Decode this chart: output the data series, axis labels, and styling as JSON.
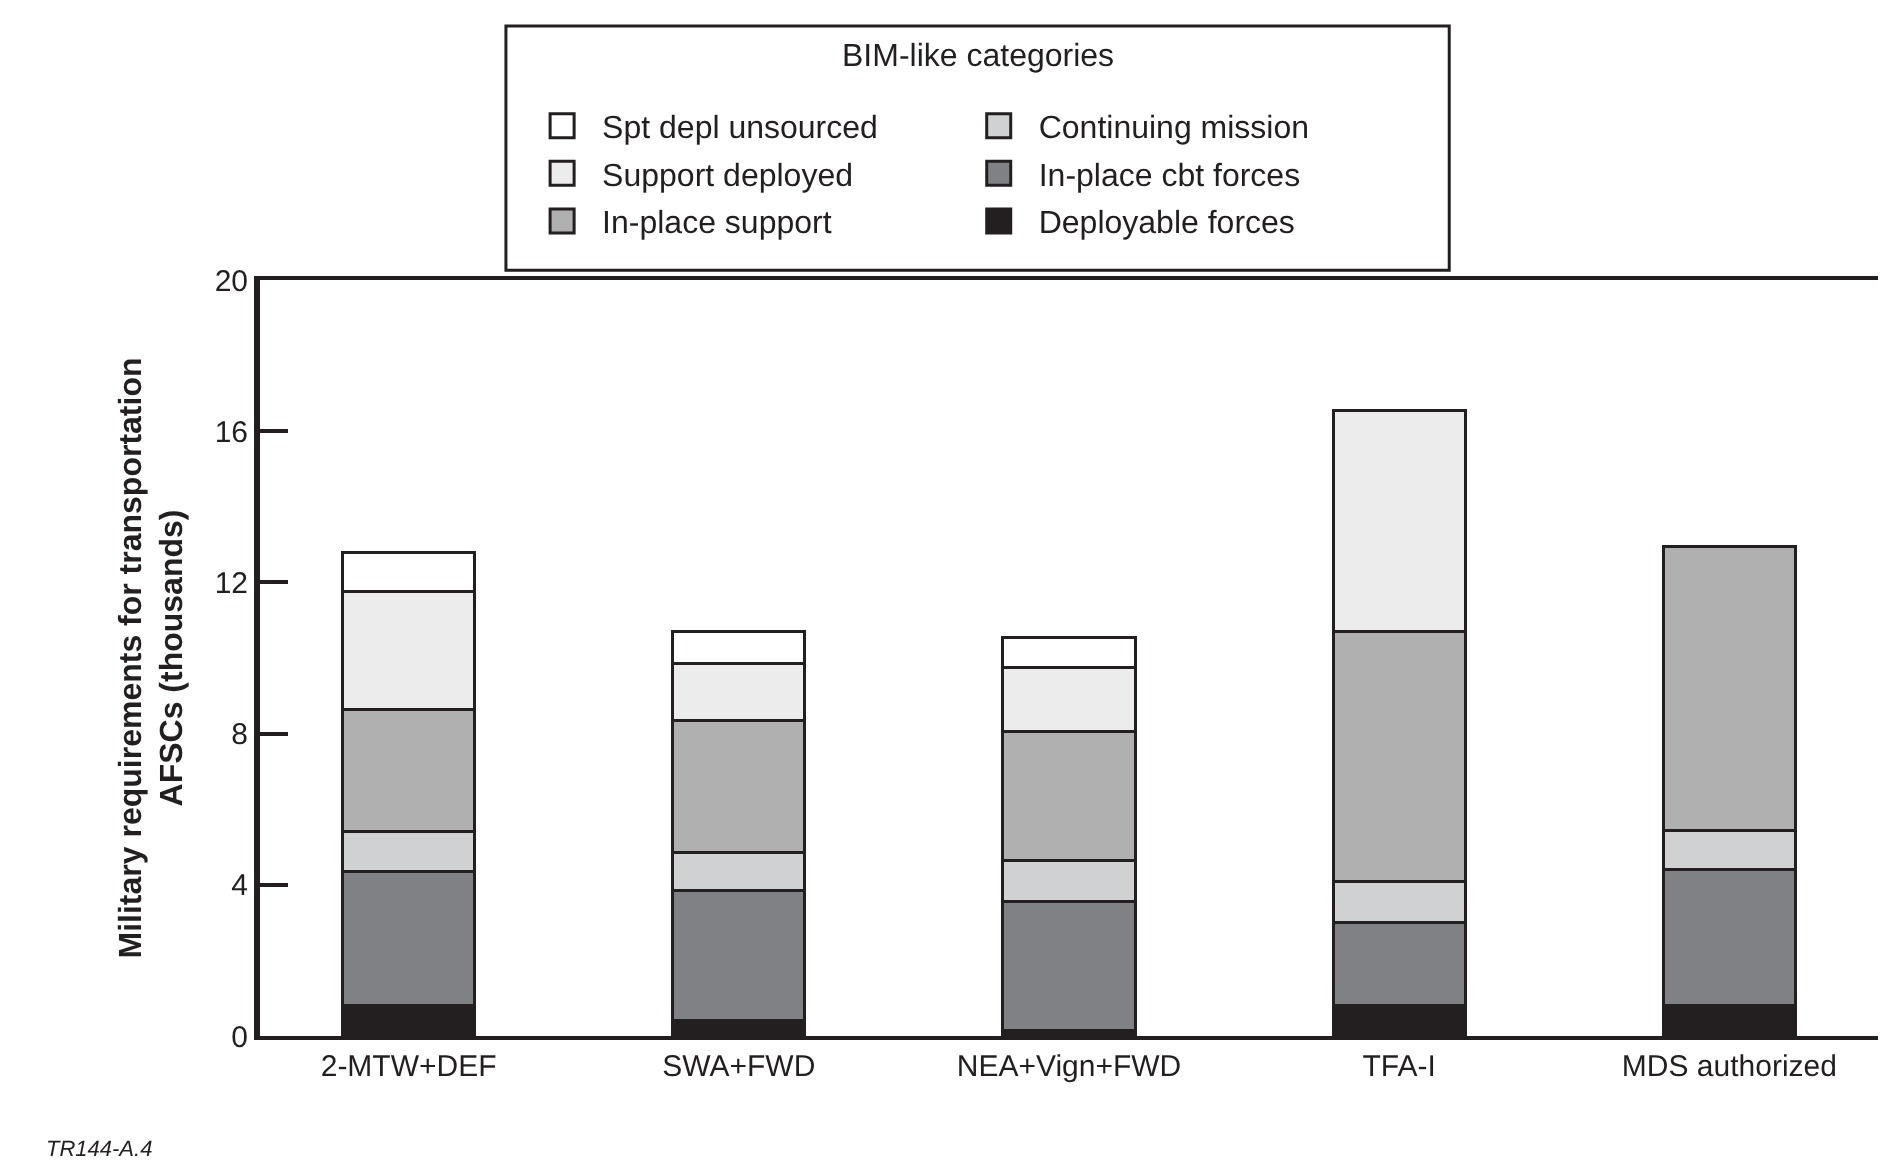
{
  "chart_data": {
    "type": "bar",
    "stacked": true,
    "ylabel": "Military requirements for transportation\nAFSCs (thousands)",
    "legend_title": "BIM-like categories",
    "categories": [
      "2-MTW+DEF",
      "SWA+FWD",
      "NEA+Vign+FWD",
      "TFA-I",
      "MDS authorized"
    ],
    "series": [
      {
        "name": "Deployable forces",
        "color": "#231f20",
        "values": [
          0.8,
          0.4,
          0.15,
          0.8,
          0.8
        ]
      },
      {
        "name": "In-place cbt forces",
        "color": "#808185",
        "values": [
          3.55,
          3.45,
          3.4,
          2.2,
          3.6
        ]
      },
      {
        "name": "Continuing mission",
        "color": "#d0d1d3",
        "values": [
          1.05,
          1.0,
          1.1,
          1.1,
          1.05
        ]
      },
      {
        "name": "In-place support",
        "color": "#b0b0b0",
        "values": [
          3.25,
          3.5,
          3.4,
          6.6,
          7.5
        ]
      },
      {
        "name": "Support deployed",
        "color": "#ececec",
        "values": [
          3.1,
          1.5,
          1.7,
          5.85,
          null
        ]
      },
      {
        "name": "Spt depl unsourced",
        "color": "#ffffff",
        "values": [
          1.05,
          0.85,
          0.8,
          null,
          null
        ]
      }
    ],
    "ylim": [
      0,
      20
    ],
    "yticks": [
      0,
      4,
      8,
      12,
      16,
      20
    ],
    "grid": false,
    "legend": "top",
    "annotations": [
      "TR144-A.4"
    ]
  }
}
